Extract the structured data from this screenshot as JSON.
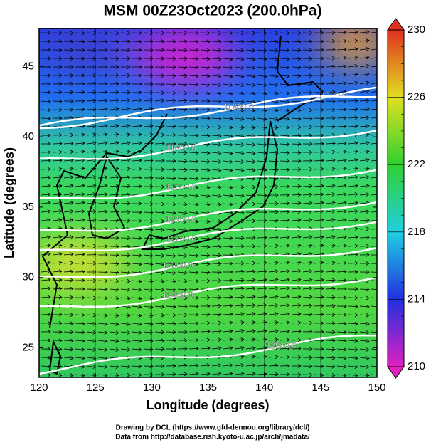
{
  "chart_data": {
    "type": "map",
    "title": "MSM 00Z23Oct2023 (200.0hPa)",
    "x_label": "Longitude (degrees)",
    "y_label": "Latitude  (degrees)",
    "xlim": [
      120,
      150
    ],
    "xticks": [
      120,
      125,
      130,
      135,
      140,
      145,
      150
    ],
    "ylim": [
      22.9,
      47.7
    ],
    "yticks": [
      25,
      30,
      35,
      40,
      45
    ],
    "contours": [
      {
        "label": "11700.0",
        "lon": 146.0,
        "lat": 42.9
      },
      {
        "label": "11800.0",
        "lon": 137.7,
        "lat": 42.1
      },
      {
        "label": "11900.0",
        "lon": 132.6,
        "lat": 39.2
      },
      {
        "label": "12000.0",
        "lon": 132.6,
        "lat": 36.4
      },
      {
        "label": "12100.0",
        "lon": 132.6,
        "lat": 34.1
      },
      {
        "label": "12200.0",
        "lon": 132.6,
        "lat": 32.7
      },
      {
        "label": "12300.0",
        "lon": 132.3,
        "lat": 30.8
      },
      {
        "label": "12400.0",
        "lon": 132.3,
        "lat": 28.7
      },
      {
        "label": "12500.0",
        "lon": 141.5,
        "lat": 25.1
      }
    ],
    "colorbar": {
      "lim": [
        210,
        230
      ],
      "ticks": [
        210,
        214,
        218,
        222,
        226,
        230
      ],
      "colors": [
        "#e020c0",
        "#2030e0",
        "#20d0e0",
        "#30d030",
        "#e0e020",
        "#e03020"
      ]
    },
    "footer": [
      "Drawing by DCL (https://www.gfd-dennou.org/library/dcl/)",
      "Data from http://database.rish.kyoto-u.ac.jp/arch/jmadata/"
    ]
  }
}
